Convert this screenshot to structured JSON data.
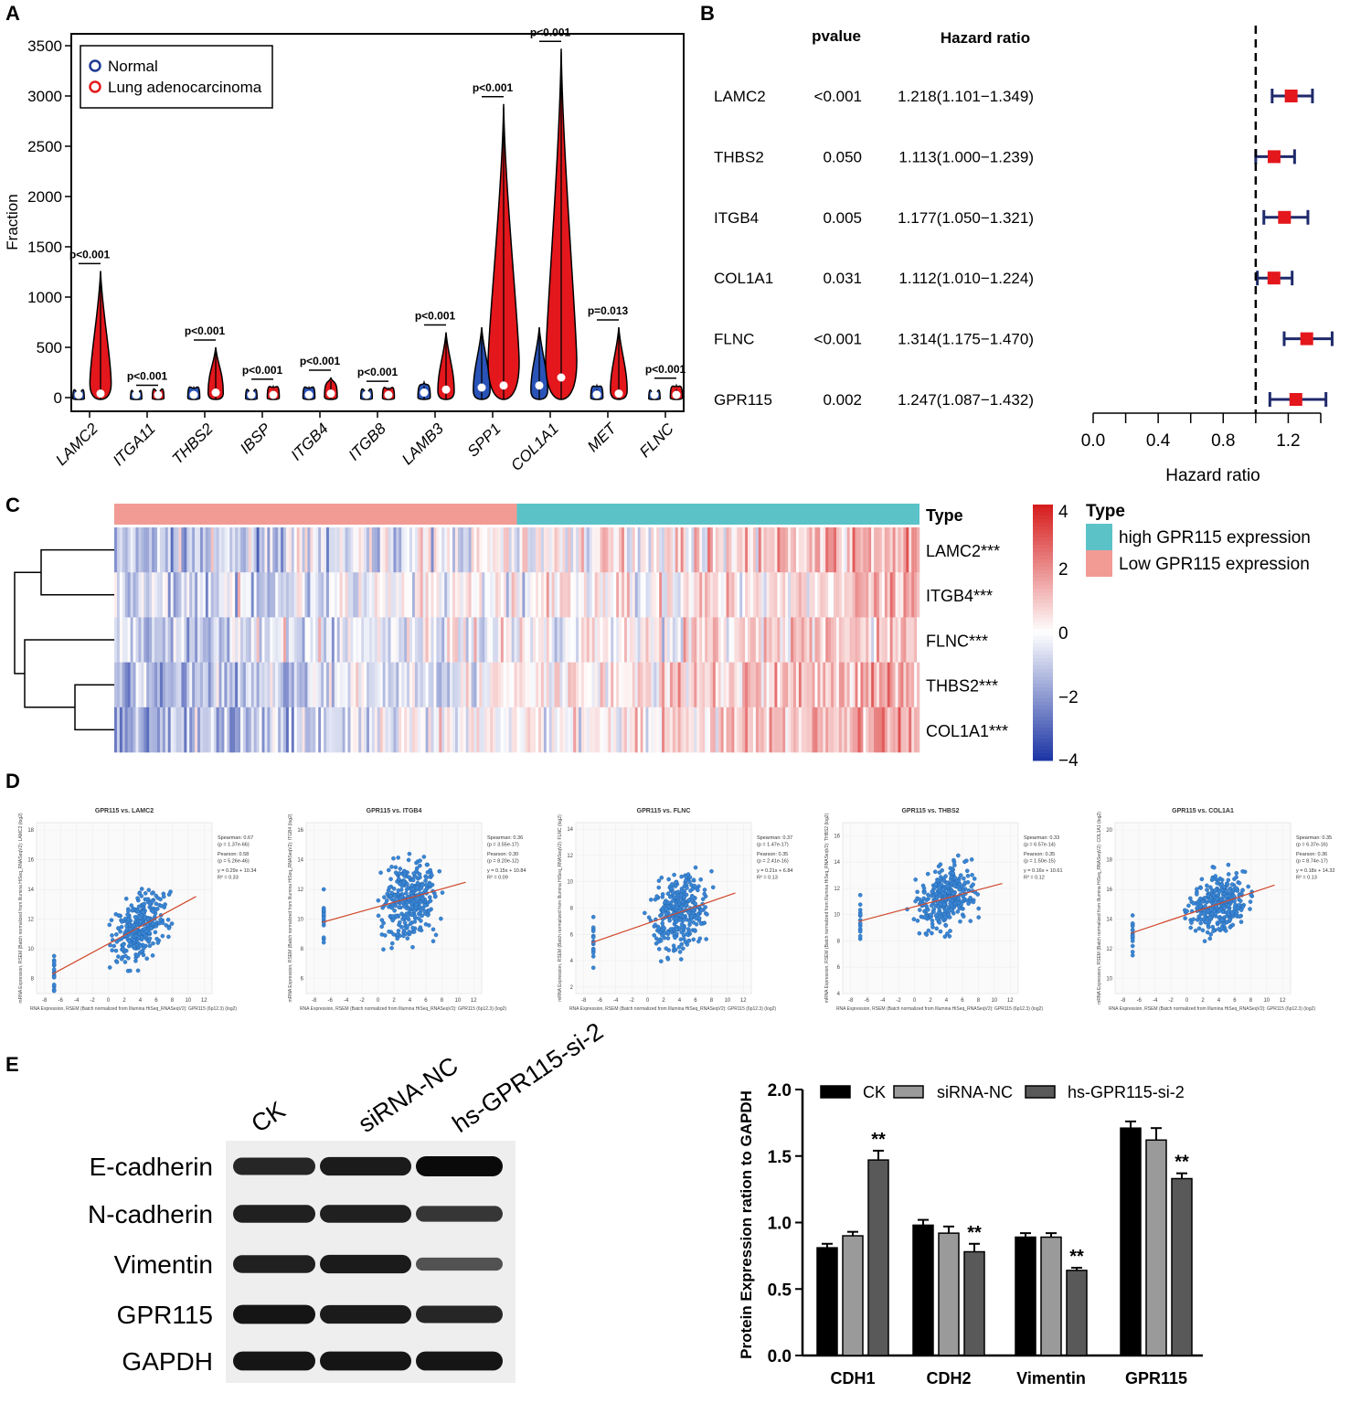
{
  "panel_labels": [
    "A",
    "B",
    "C",
    "D",
    "E"
  ],
  "chart_data": [
    {
      "panel": "A",
      "type": "violin",
      "ylabel": "Fraction",
      "ylim": [
        0,
        3500
      ],
      "yticks": [
        0,
        500,
        1000,
        1500,
        2000,
        2500,
        3000,
        3500
      ],
      "legend": [
        "Normal",
        "Lung adenocarcinoma"
      ],
      "colors": {
        "normal": "#1f3a93",
        "tumor": "#e31a1c"
      },
      "categories": [
        "LAMC2",
        "ITGA11",
        "THBS2",
        "IBSP",
        "ITGB4",
        "ITGB8",
        "LAMB3",
        "SPP1",
        "COL1A1",
        "MET",
        "FLNC"
      ],
      "pvalues": [
        "p<0.001",
        "p<0.001",
        "p<0.001",
        "p<0.001",
        "p<0.001",
        "p<0.001",
        "p<0.001",
        "p<0.001",
        "p<0.001",
        "p=0.013",
        "p<0.001"
      ],
      "normal_max": [
        30,
        10,
        100,
        40,
        100,
        50,
        150,
        700,
        700,
        120,
        20
      ],
      "tumor_max": [
        1260,
        50,
        500,
        110,
        200,
        90,
        650,
        2920,
        3470,
        700,
        120
      ],
      "tumor_median": [
        40,
        5,
        50,
        10,
        40,
        10,
        80,
        120,
        200,
        40,
        10
      ],
      "normal_median": [
        10,
        2,
        20,
        5,
        20,
        5,
        50,
        100,
        120,
        30,
        5
      ]
    },
    {
      "panel": "B",
      "type": "forest",
      "headers": [
        "pvalue",
        "Hazard ratio"
      ],
      "genes": [
        "LAMC2",
        "THBS2",
        "ITGB4",
        "COL1A1",
        "FLNC",
        "GPR115"
      ],
      "pvalues": [
        "<0.001",
        "0.050",
        "0.005",
        "0.031",
        "<0.001",
        "0.002"
      ],
      "hr_text": [
        "1.218(1.101−1.349)",
        "1.113(1.000−1.239)",
        "1.177(1.050−1.321)",
        "1.112(1.010−1.224)",
        "1.314(1.175−1.470)",
        "1.247(1.087−1.432)"
      ],
      "hr": [
        1.218,
        1.113,
        1.177,
        1.112,
        1.314,
        1.247
      ],
      "lower": [
        1.101,
        1.0,
        1.05,
        1.01,
        1.175,
        1.087
      ],
      "upper": [
        1.349,
        1.239,
        1.321,
        1.224,
        1.47,
        1.432
      ],
      "xlim": [
        0,
        1.4
      ],
      "xticks": [
        "0.0",
        "0.4",
        "0.8",
        "1.2"
      ],
      "xtick_values": [
        0,
        0.4,
        0.8,
        1.2
      ],
      "reference": 1.0,
      "xlabel": "Hazard ratio"
    },
    {
      "panel": "C",
      "type": "heatmap",
      "rows": [
        "LAMC2***",
        "ITGB4***",
        "FLNC***",
        "THBS2***",
        "COL1A1***"
      ],
      "annotation_label": "Type",
      "legend_title": "Type",
      "legend": [
        "high GPR115 expression",
        "Low GPR115 expression"
      ],
      "legend_colors": [
        "#5bc3c8",
        "#f29b95"
      ],
      "colorbar_ticks": [
        "4",
        "2",
        "0",
        "−2",
        "−4"
      ],
      "colorbar_values": [
        4,
        2,
        0,
        -2,
        -4
      ],
      "low_group_fraction": 0.5
    },
    {
      "panel": "D",
      "type": "scatter",
      "plots": [
        {
          "title": "GPR115 vs. LAMC2",
          "ylabel": "mRNA Expression, RSEM (Batch normalized from Illumina HiSeq_RNASeqV2): LAMC2 (log2)",
          "stats": [
            "Spearman: 0.67",
            "(p = 1.37e-66)",
            "Pearson: 0.58",
            "(p = 5.26e-46)",
            "y = 0.29x + 10.34",
            "R² = 0.33"
          ],
          "yticks": [
            8,
            10,
            12,
            14,
            16,
            18
          ],
          "slope": 0.29,
          "intercept": 10.34,
          "spread": 1.5,
          "ylim": [
            7,
            18.5
          ]
        },
        {
          "title": "GPR115 vs. ITGB4",
          "ylabel": "mRNA Expression, RSEM (Batch normalized from Illumina HiSeq_RNASeqV2): ITGB4 (log2)",
          "stats": [
            "Spearman: 0.36",
            "(p = 3.55e-17)",
            "Pearson: 0.30",
            "(p = 8.20e-12)",
            "y = 0.15x + 10.84",
            "R² = 0.09"
          ],
          "yticks": [
            6,
            8,
            10,
            12,
            14,
            16
          ],
          "slope": 0.15,
          "intercept": 10.84,
          "spread": 1.8,
          "ylim": [
            5,
            16.5
          ]
        },
        {
          "title": "GPR115 vs. FLNC",
          "ylabel": "mRNA Expression, RSEM (Batch normalized from Illumina HiSeq_RNASeqV2): FLNC (log2)",
          "stats": [
            "Spearman: 0.37",
            "(p = 1.47e-17)",
            "Pearson: 0.35",
            "(p = 2.41e-16)",
            "y = 0.21x + 6.84",
            "R² = 0.13"
          ],
          "yticks": [
            2,
            4,
            6,
            8,
            10,
            12,
            14
          ],
          "slope": 0.21,
          "intercept": 6.84,
          "spread": 2.0,
          "ylim": [
            1.5,
            14.5
          ]
        },
        {
          "title": "GPR115 vs. THBS2",
          "ylabel": "mRNA Expression, RSEM (Batch normalized from Illumina HiSeq_RNASeqV2): THBS2 (log2)",
          "stats": [
            "Spearman: 0.33",
            "(p = 6.57e-14)",
            "Pearson: 0.35",
            "(p = 1.50e-15)",
            "y = 0.16x + 10.61",
            "R² = 0.12"
          ],
          "yticks": [
            4,
            6,
            8,
            10,
            12,
            14,
            16
          ],
          "slope": 0.16,
          "intercept": 10.61,
          "spread": 1.6,
          "ylim": [
            4,
            17
          ]
        },
        {
          "title": "GPR115 vs. COL1A1",
          "ylabel": "mRNA Expression, RSEM (Batch normalized from Illumina HiSeq_RNASeqV2): COL1A1 (log2)",
          "stats": [
            "Spearman: 0.35",
            "(p = 6.37e-16)",
            "Pearson: 0.36",
            "(p = 8.74e-17)",
            "y = 0.18x + 14.32",
            "R² = 0.13"
          ],
          "yticks": [
            10,
            12,
            14,
            16,
            18,
            20
          ],
          "slope": 0.18,
          "intercept": 14.32,
          "spread": 1.4,
          "ylim": [
            9,
            20.5
          ]
        }
      ],
      "xlabel": "RNA Expression, RSEM (Batch normalized from Illumina HiSeq_RNASeqV2): GPR115 (6p12.3) (log2)",
      "xticks": [
        -8,
        -6,
        -4,
        -2,
        0,
        2,
        4,
        6,
        8,
        10,
        12
      ],
      "xlim": [
        -9,
        13
      ]
    },
    {
      "panel": "E-blot",
      "type": "western_blot",
      "lanes": [
        "CK",
        "siRNA-NC",
        "hs-GPR115-si-2"
      ],
      "bands": [
        "E-cadherin",
        "N-cadherin",
        "Vimentin",
        "GPR115",
        "GAPDH"
      ],
      "intensity": [
        [
          0.75,
          0.85,
          1.0
        ],
        [
          0.8,
          0.8,
          0.6
        ],
        [
          0.8,
          0.85,
          0.35
        ],
        [
          0.9,
          0.85,
          0.75
        ],
        [
          0.9,
          0.9,
          0.9
        ]
      ]
    },
    {
      "panel": "E-bar",
      "type": "bar",
      "title": "",
      "ylabel": "Protein Expression ration to  GAPDH",
      "ylim": [
        0,
        2.0
      ],
      "yticks": [
        "0.0",
        "0.5",
        "1.0",
        "1.5",
        "2.0"
      ],
      "ytick_values": [
        0,
        0.5,
        1.0,
        1.5,
        2.0
      ],
      "categories": [
        "CDH1",
        "CDH2",
        "Vimentin",
        "GPR115"
      ],
      "series": [
        {
          "name": "CK",
          "color": "#000000",
          "values": [
            0.81,
            0.98,
            0.89,
            1.71
          ],
          "errors": [
            0.03,
            0.04,
            0.03,
            0.05
          ]
        },
        {
          "name": "siRNA-NC",
          "color": "#9a9a9a",
          "values": [
            0.9,
            0.92,
            0.89,
            1.62
          ],
          "errors": [
            0.03,
            0.05,
            0.03,
            0.09
          ]
        },
        {
          "name": "hs-GPR115-si-2",
          "color": "#595959",
          "values": [
            1.47,
            0.78,
            0.64,
            1.33
          ],
          "errors": [
            0.07,
            0.06,
            0.02,
            0.04
          ]
        }
      ],
      "significance": [
        "**",
        "**",
        "**",
        "**"
      ]
    }
  ]
}
